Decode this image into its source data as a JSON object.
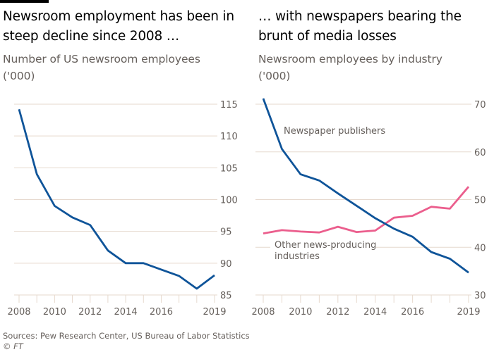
{
  "brand": {
    "bar_color": "#000000"
  },
  "footer": {
    "source": "Sources: Pew Research Center, US Bureau of Labor Statistics",
    "copyright_symbol": "©",
    "copyright": "FT"
  },
  "colors": {
    "blue": "#0f5499",
    "pink": "#eb5e8d",
    "grid": "#e6d9ce",
    "tick": "#66605c"
  },
  "chart_data": [
    {
      "type": "line",
      "title": "Newsroom employment has been in steep decline since 2008 …",
      "subtitle": "Number of US newsroom employees",
      "unit_label": "('000)",
      "xlabel": "",
      "ylabel": "",
      "x": [
        2008,
        2009,
        2010,
        2011,
        2012,
        2013,
        2014,
        2015,
        2016,
        2017,
        2018,
        2019
      ],
      "x_tick_labels": [
        "2008",
        "2010",
        "2012",
        "2014",
        "2016",
        "2019"
      ],
      "x_tick_values": [
        2008,
        2010,
        2012,
        2014,
        2016,
        2019
      ],
      "y_ticks": [
        85,
        90,
        95,
        100,
        105,
        110,
        115
      ],
      "ylim": [
        85,
        115
      ],
      "xlim": [
        2008,
        2019
      ],
      "y_axis_side": "right",
      "grid": true,
      "series": [
        {
          "name": "US newsroom employees",
          "color_key": "blue",
          "values": [
            114.2,
            104.0,
            99.0,
            97.2,
            96.0,
            92.0,
            90.0,
            90.0,
            89.0,
            88.0,
            86.0,
            88.1
          ]
        }
      ],
      "annotations": []
    },
    {
      "type": "line",
      "title": "… with newspapers bearing the brunt of media losses",
      "subtitle": "Newsroom employees by industry",
      "unit_label": "('000)",
      "xlabel": "",
      "ylabel": "",
      "x": [
        2008,
        2009,
        2010,
        2011,
        2012,
        2013,
        2014,
        2015,
        2016,
        2017,
        2018,
        2019
      ],
      "x_tick_labels": [
        "2008",
        "2010",
        "2012",
        "2014",
        "2016",
        "2019"
      ],
      "x_tick_values": [
        2008,
        2010,
        2012,
        2014,
        2016,
        2019
      ],
      "y_ticks": [
        30,
        40,
        50,
        60,
        70
      ],
      "ylim": [
        30,
        70
      ],
      "xlim": [
        2008,
        2019
      ],
      "y_axis_side": "right",
      "grid": true,
      "series": [
        {
          "name": "Newspaper publishers",
          "color_key": "blue",
          "values": [
            71.2,
            60.6,
            55.3,
            54.0,
            51.3,
            48.7,
            46.1,
            43.9,
            42.2,
            39.0,
            37.6,
            34.7
          ]
        },
        {
          "name": "Other news-producing industries",
          "color_key": "pink",
          "values": [
            42.9,
            43.6,
            43.3,
            43.1,
            44.3,
            43.2,
            43.5,
            46.2,
            46.6,
            48.5,
            48.1,
            52.7
          ]
        }
      ],
      "annotations": [
        {
          "series": "Newspaper publishers",
          "lines": [
            "Newspaper publishers"
          ]
        },
        {
          "series": "Other news-producing industries",
          "lines": [
            "Other news-producing",
            "industries"
          ]
        }
      ]
    }
  ]
}
